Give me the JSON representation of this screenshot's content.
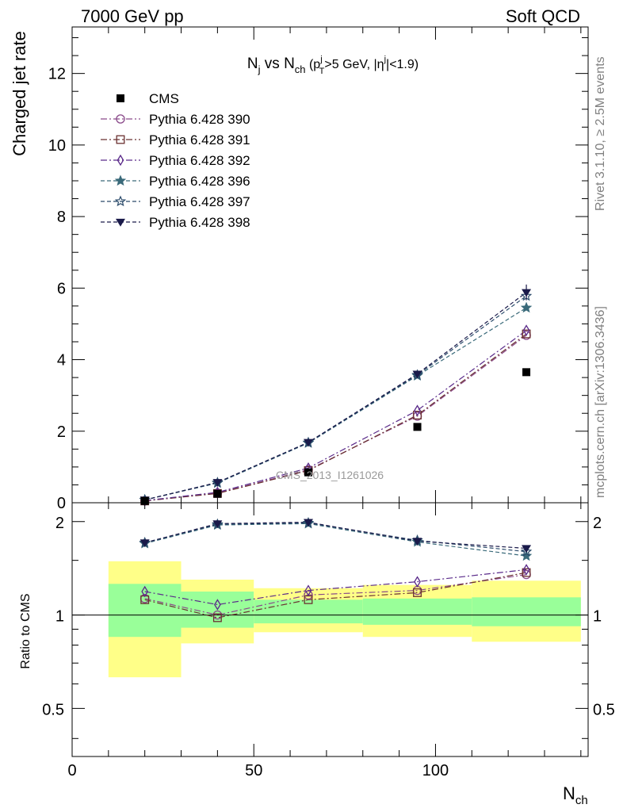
{
  "header": {
    "left": "7000 GeV pp",
    "right": "Soft QCD"
  },
  "side_text": {
    "rivet": "Rivet 3.1.10, ≥ 2.5M events",
    "source": "mcplots.cern.ch [arXiv:1306.3436]"
  },
  "watermark": "CMS_2013_I1261026",
  "colors": {
    "band_inner": "#99ff99",
    "band_outer": "#ffff88"
  },
  "chart_data": [
    {
      "type": "scatter",
      "title": {
        "n": "N",
        "n_sub": "j",
        "vs": " vs N",
        "ch_sub": "ch",
        "open": " (p",
        "p_sup": "j",
        "p_sub": "T",
        "mid": ">5 GeV, |η",
        "eta_sup": "j",
        "close": "|<1.9)"
      },
      "ylabel": "Charged jet rate",
      "xlabel": "N",
      "xlabel_sub": "ch",
      "xlim": [
        0,
        142
      ],
      "ylim": [
        0,
        13.3
      ],
      "x_ticks": [
        "0",
        "50",
        "100"
      ],
      "y_ticks": [
        "0",
        "2",
        "4",
        "6",
        "8",
        "10",
        "12"
      ],
      "legend_position": "top-left",
      "data": {
        "name": "CMS",
        "x": [
          20,
          40,
          65,
          95,
          125
        ],
        "xerr": [
          10,
          10,
          15,
          15,
          15
        ],
        "y": [
          0.05,
          0.25,
          0.85,
          2.12,
          3.65
        ]
      },
      "series": [
        {
          "name": "Pythia 6.428 390",
          "color": "#8a4a8a",
          "marker": "circle-open",
          "dash": "dashdot",
          "y": [
            0.05,
            0.27,
            0.92,
            2.42,
            4.68
          ]
        },
        {
          "name": "Pythia 6.428 391",
          "color": "#6a3030",
          "marker": "square-open",
          "dash": "dashdot",
          "y": [
            0.05,
            0.26,
            0.9,
            2.45,
            4.72
          ]
        },
        {
          "name": "Pythia 6.428 392",
          "color": "#5a2a8a",
          "marker": "diamond-open",
          "dash": "dashdot",
          "y": [
            0.06,
            0.29,
            0.97,
            2.58,
            4.82
          ]
        },
        {
          "name": "Pythia 6.428 396",
          "color": "#3a6a7a",
          "marker": "star-filled",
          "dash": "dashed",
          "y": [
            0.08,
            0.55,
            1.67,
            3.55,
            5.45
          ]
        },
        {
          "name": "Pythia 6.428 397",
          "color": "#2a4a6a",
          "marker": "star-open",
          "dash": "dashed",
          "y": [
            0.08,
            0.56,
            1.68,
            3.57,
            5.78
          ]
        },
        {
          "name": "Pythia 6.428 398",
          "color": "#1a1a4a",
          "marker": "triangle-down-filled",
          "dash": "dashed",
          "y": [
            0.08,
            0.57,
            1.69,
            3.6,
            5.88
          ]
        }
      ]
    },
    {
      "type": "scatter",
      "ylabel": "Ratio to CMS",
      "xlim": [
        0,
        142
      ],
      "ylim": [
        0.35,
        2.3
      ],
      "log_y": true,
      "x_ticks": [
        "0",
        "50",
        "100"
      ],
      "y_ticks": [
        "0.5",
        "1",
        "2"
      ],
      "bands": [
        {
          "x0": 10,
          "x1": 30,
          "inner": [
            0.85,
            1.26
          ],
          "outer": [
            0.63,
            1.49
          ]
        },
        {
          "x0": 30,
          "x1": 50,
          "inner": [
            0.91,
            1.19
          ],
          "outer": [
            0.81,
            1.3
          ]
        },
        {
          "x0": 50,
          "x1": 80,
          "inner": [
            0.94,
            1.12
          ],
          "outer": [
            0.88,
            1.22
          ]
        },
        {
          "x0": 80,
          "x1": 110,
          "inner": [
            0.93,
            1.13
          ],
          "outer": [
            0.85,
            1.25
          ]
        },
        {
          "x0": 110,
          "x1": 140,
          "inner": [
            0.92,
            1.14
          ],
          "outer": [
            0.82,
            1.29
          ]
        }
      ],
      "series": [
        {
          "name": "Pythia 6.428 390",
          "y": [
            1.13,
            1.0,
            1.16,
            1.2,
            1.35
          ]
        },
        {
          "name": "Pythia 6.428 391",
          "y": [
            1.12,
            0.98,
            1.12,
            1.18,
            1.37
          ]
        },
        {
          "name": "Pythia 6.428 392",
          "y": [
            1.19,
            1.08,
            1.2,
            1.28,
            1.4
          ]
        },
        {
          "name": "Pythia 6.428 396",
          "y": [
            1.7,
            1.95,
            1.97,
            1.72,
            1.55
          ]
        },
        {
          "name": "Pythia 6.428 397",
          "y": [
            1.71,
            1.96,
            1.98,
            1.74,
            1.6
          ]
        },
        {
          "name": "Pythia 6.428 398",
          "y": [
            1.71,
            1.97,
            1.99,
            1.73,
            1.64
          ]
        }
      ]
    }
  ]
}
